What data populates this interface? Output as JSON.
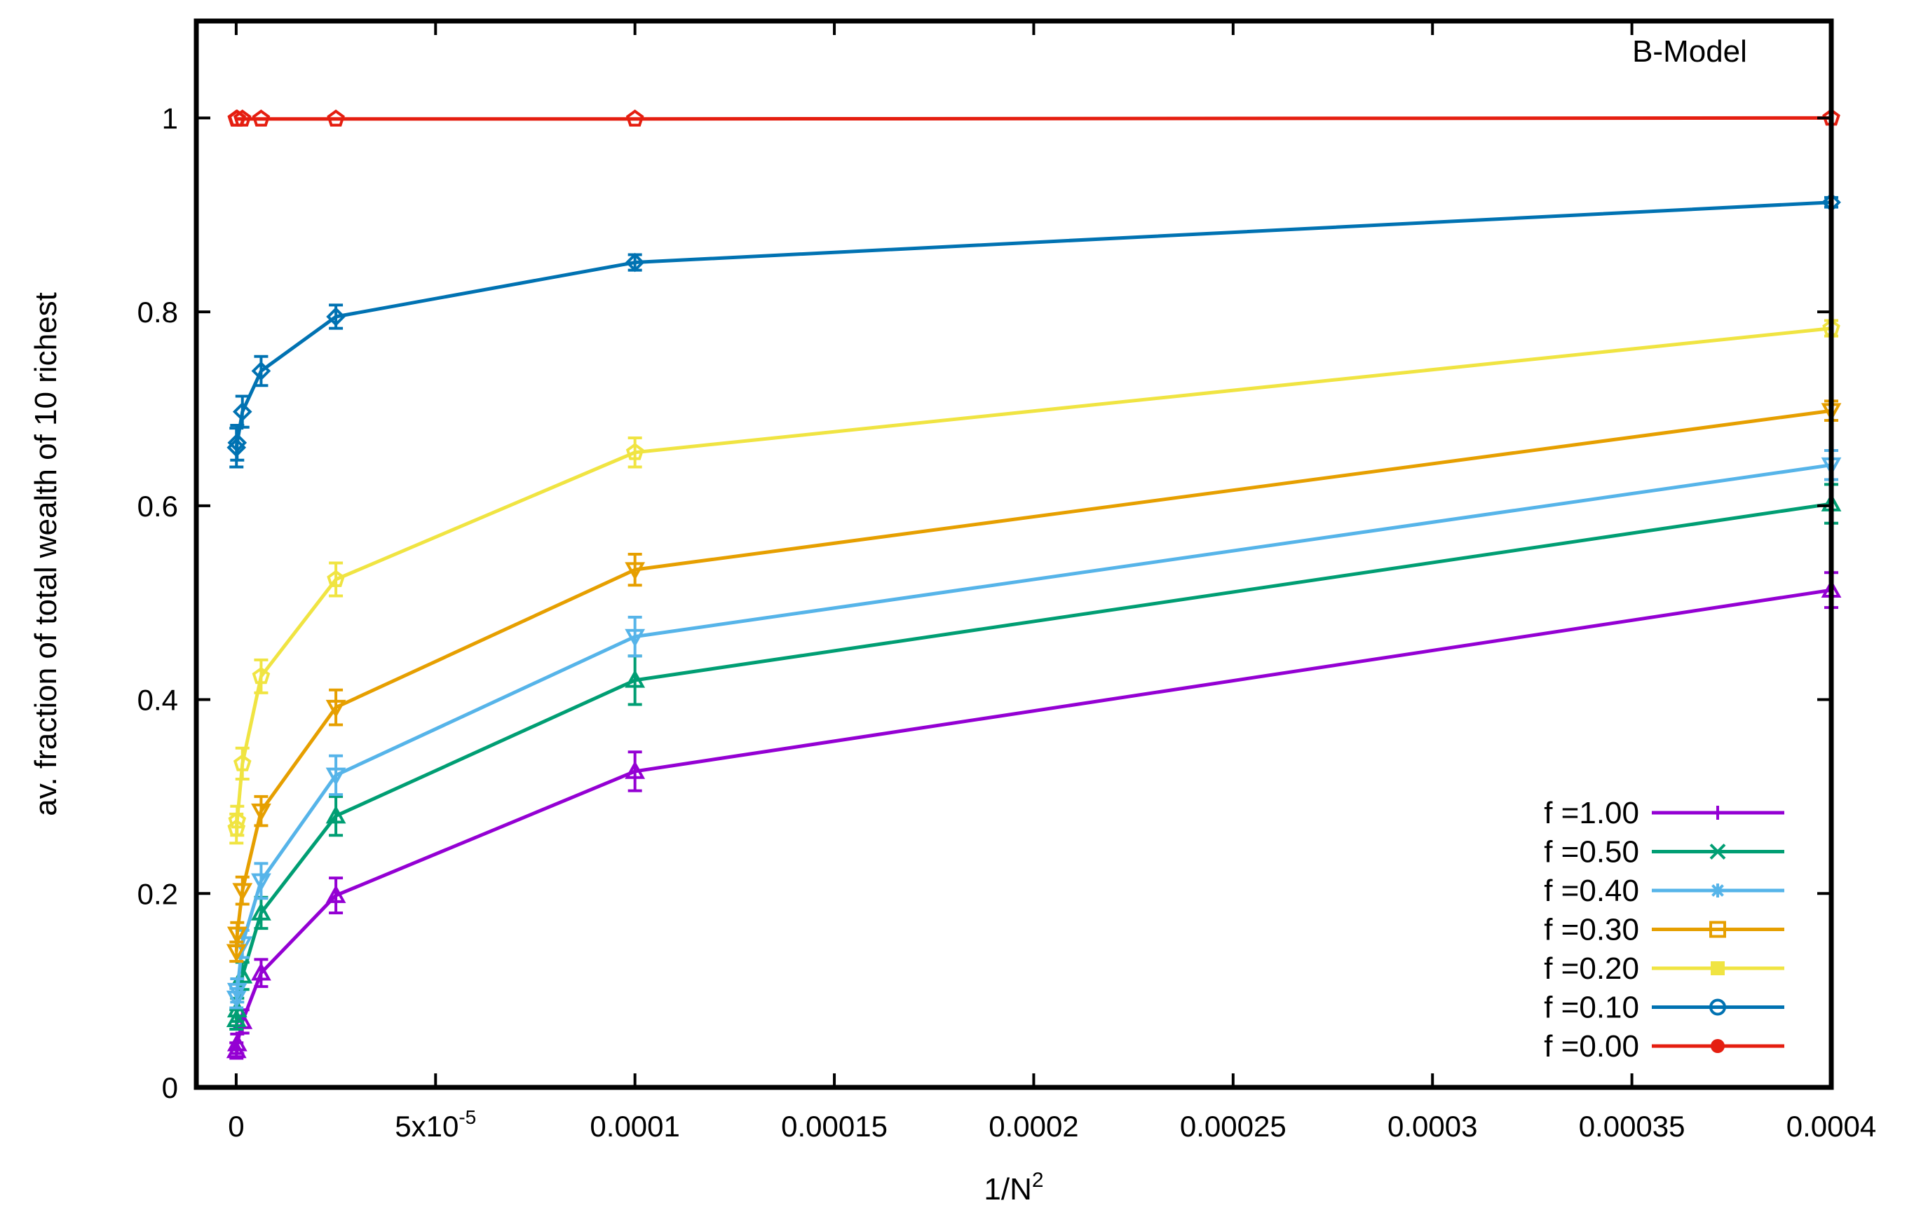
{
  "chart_data": {
    "type": "line",
    "title": "B-Model",
    "xlabel": "1/N",
    "xlabel_sup": "2",
    "ylabel": "av. fraction  of total wealth of 10 richest",
    "xlim": [
      -1e-05,
      0.0004
    ],
    "ylim": [
      0,
      1.1
    ],
    "grid": false,
    "legend_position": "bottom-right",
    "x_ticks": [
      {
        "value": 0,
        "label": "0"
      },
      {
        "value": 5e-05,
        "label": "5x10",
        "sup": "-5"
      },
      {
        "value": 0.0001,
        "label": "0.0001"
      },
      {
        "value": 0.00015,
        "label": "0.00015"
      },
      {
        "value": 0.0002,
        "label": "0.0002"
      },
      {
        "value": 0.00025,
        "label": "0.00025"
      },
      {
        "value": 0.0003,
        "label": "0.0003"
      },
      {
        "value": 0.00035,
        "label": "0.00035"
      },
      {
        "value": 0.0004,
        "label": "0.0004"
      }
    ],
    "y_ticks": [
      {
        "value": 0,
        "label": "0"
      },
      {
        "value": 0.2,
        "label": "0.2"
      },
      {
        "value": 0.4,
        "label": "0.4"
      },
      {
        "value": 0.6,
        "label": "0.6"
      },
      {
        "value": 0.8,
        "label": "0.8"
      },
      {
        "value": 1,
        "label": "1"
      }
    ],
    "x": [
      6.25e-08,
      2.5e-07,
      1.5625e-06,
      6.25e-06,
      2.5e-05,
      0.0001,
      0.0004
    ],
    "series": [
      {
        "name": "f =1.00",
        "color": "#9400d3",
        "marker": "triangle",
        "values": [
          0.038,
          0.045,
          0.068,
          0.118,
          0.198,
          0.326,
          0.513
        ],
        "errors": [
          0.008,
          0.01,
          0.012,
          0.014,
          0.018,
          0.02,
          0.018
        ]
      },
      {
        "name": "f =0.50",
        "color": "#009e73",
        "marker": "triangle",
        "values": [
          0.07,
          0.08,
          0.115,
          0.18,
          0.28,
          0.42,
          0.602
        ],
        "errors": [
          0.01,
          0.012,
          0.014,
          0.016,
          0.02,
          0.025,
          0.02
        ]
      },
      {
        "name": "f =0.40",
        "color": "#56b4e9",
        "marker": "triangle-down",
        "values": [
          0.092,
          0.1,
          0.148,
          0.213,
          0.322,
          0.465,
          0.642
        ],
        "errors": [
          0.01,
          0.012,
          0.014,
          0.018,
          0.02,
          0.02,
          0.015
        ]
      },
      {
        "name": "f =0.30",
        "color": "#e69f00",
        "marker": "triangle-down",
        "values": [
          0.14,
          0.158,
          0.203,
          0.285,
          0.392,
          0.534,
          0.698
        ],
        "errors": [
          0.01,
          0.012,
          0.014,
          0.015,
          0.018,
          0.016,
          0.01
        ]
      },
      {
        "name": "f =0.20",
        "color": "#f0e442",
        "marker": "pentagon",
        "values": [
          0.267,
          0.275,
          0.334,
          0.424,
          0.524,
          0.655,
          0.783
        ],
        "errors": [
          0.015,
          0.015,
          0.016,
          0.017,
          0.017,
          0.015,
          0.008
        ]
      },
      {
        "name": "f =0.10",
        "color": "#0072b2",
        "marker": "diamond",
        "values": [
          0.66,
          0.665,
          0.697,
          0.739,
          0.795,
          0.851,
          0.913
        ],
        "errors": [
          0.02,
          0.018,
          0.016,
          0.015,
          0.012,
          0.008,
          0.005
        ]
      },
      {
        "name": "f =0.00",
        "color": "#e51e10",
        "marker": "pentagon",
        "values": [
          0.999,
          0.999,
          0.999,
          0.999,
          0.999,
          0.999,
          1.0
        ],
        "errors": [
          0.001,
          0.001,
          0.001,
          0.001,
          0.001,
          0.001,
          0.0
        ]
      }
    ],
    "legend": [
      {
        "label": "f =1.00",
        "color": "#9400d3",
        "marker": "plus"
      },
      {
        "label": "f =0.50",
        "color": "#009e73",
        "marker": "cross"
      },
      {
        "label": "f =0.40",
        "color": "#56b4e9",
        "marker": "star"
      },
      {
        "label": "f =0.30",
        "color": "#e69f00",
        "marker": "open-square"
      },
      {
        "label": "f =0.20",
        "color": "#f0e442",
        "marker": "filled-square"
      },
      {
        "label": "f =0.10",
        "color": "#0072b2",
        "marker": "open-circle"
      },
      {
        "label": "f =0.00",
        "color": "#e51e10",
        "marker": "filled-circle"
      }
    ]
  }
}
